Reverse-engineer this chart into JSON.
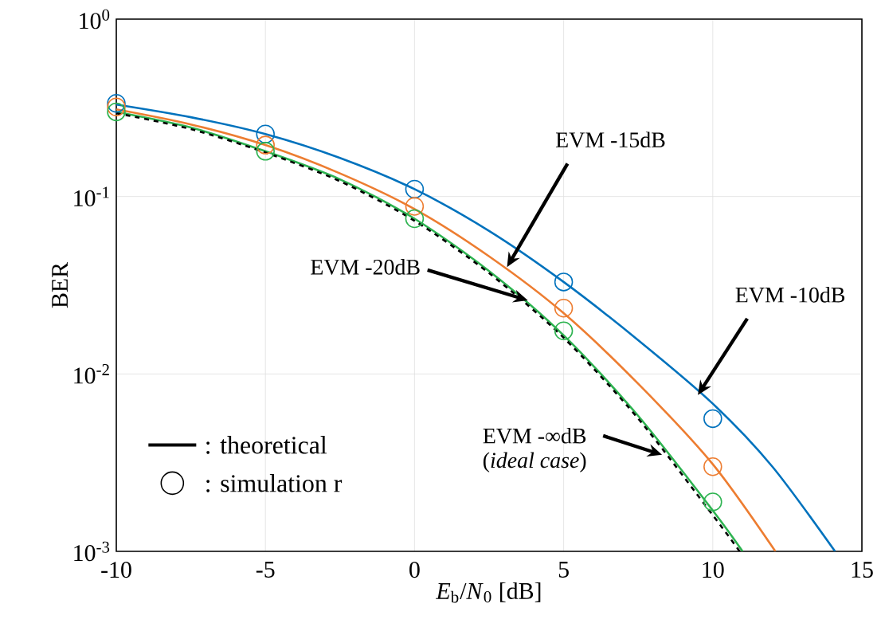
{
  "chart_data": {
    "type": "line",
    "xlabel": "*E*$_{b}$/*N*$_{0}$ [dB]",
    "ylabel": "BER",
    "xlim": [
      -10,
      15
    ],
    "ylim": [
      0.001,
      1
    ],
    "xticks": [
      -10,
      -5,
      0,
      5,
      10,
      15
    ],
    "yticks": [
      {
        "value": 1,
        "label": "10$^{0}$"
      },
      {
        "value": 0.1,
        "label": "10$^{-1}$"
      },
      {
        "value": 0.01,
        "label": "10$^{-2}$"
      },
      {
        "value": 0.001,
        "label": "10$^{-3}$"
      }
    ],
    "log": "y",
    "grid": true,
    "series": [
      {
        "color": "#0072bd",
        "line_style": "solid",
        "marker": "none",
        "x": [
          -10,
          -7.5,
          -5,
          -2.5,
          0,
          2.5,
          5,
          7.5,
          10,
          12,
          14.1
        ],
        "values": [
          0.33,
          0.28,
          0.225,
          0.165,
          0.11,
          0.064,
          0.033,
          0.0155,
          0.0068,
          0.003,
          0.001
        ]
      },
      {
        "color": "#ed7d31",
        "line_style": "solid",
        "marker": "none",
        "x": [
          -10,
          -7.5,
          -5,
          -2.5,
          0,
          2.5,
          5,
          7.5,
          10,
          12.1
        ],
        "values": [
          0.31,
          0.255,
          0.195,
          0.135,
          0.085,
          0.046,
          0.022,
          0.0088,
          0.0031,
          0.001
        ]
      },
      {
        "color": "#2db350",
        "line_style": "solid",
        "marker": "none",
        "x": [
          -10,
          -7.5,
          -5,
          -2.5,
          0,
          2.5,
          5,
          7.5,
          10,
          11
        ],
        "values": [
          0.3,
          0.245,
          0.18,
          0.125,
          0.075,
          0.038,
          0.0165,
          0.0058,
          0.0017,
          0.001
        ]
      },
      {
        "color": "#000000",
        "line_style": "dashed",
        "marker": "none",
        "x": [
          -10,
          -7.5,
          -5,
          -2.5,
          0,
          2.5,
          5,
          7.5,
          10,
          10.9
        ],
        "values": [
          0.295,
          0.24,
          0.177,
          0.122,
          0.073,
          0.037,
          0.016,
          0.0056,
          0.0016,
          0.001
        ]
      },
      {
        "type": "scatter",
        "color": "#0072bd",
        "marker": "circle",
        "x": [
          -10,
          -5,
          0,
          5,
          10
        ],
        "values": [
          0.335,
          0.225,
          0.11,
          0.033,
          0.0056
        ]
      },
      {
        "type": "scatter",
        "color": "#ed7d31",
        "marker": "circle",
        "x": [
          -10,
          -5,
          0,
          5,
          10
        ],
        "values": [
          0.32,
          0.195,
          0.088,
          0.0235,
          0.003
        ]
      },
      {
        "type": "scatter",
        "color": "#2db350",
        "marker": "circle",
        "x": [
          -10,
          -5,
          0,
          5,
          10
        ],
        "values": [
          0.3,
          0.18,
          0.075,
          0.0175,
          0.0019
        ]
      }
    ],
    "annotations": [
      {
        "text": "EVM    -15dB",
        "x": 3.1,
        "y": 0.04
      },
      {
        "text": "EVM    -10dB",
        "x": 9.5,
        "y": 0.0076
      },
      {
        "text": "EVM    -20dB",
        "x": 3.8,
        "y": 0.026
      },
      {
        "text": "EVM    -∞dB",
        "x": 8.3,
        "y": 0.0035
      },
      "(*ideal case*)",
      ": theoretical",
      ": simulation r"
    ]
  }
}
